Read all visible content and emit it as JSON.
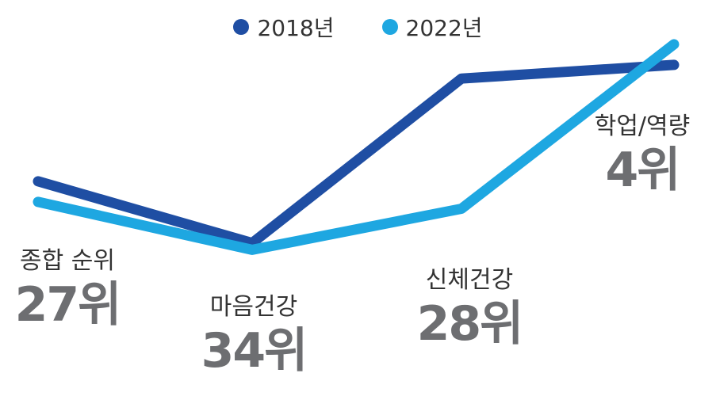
{
  "chart_data": {
    "type": "line",
    "categories": [
      "종합 순위",
      "마음건강",
      "신체건강",
      "학업/역량"
    ],
    "ranks": [
      "27위",
      "34위",
      "28위",
      "4위"
    ],
    "series": [
      {
        "name": "2018년",
        "color": "#1f4ea3",
        "values": [
          24,
          33,
          9,
          7
        ]
      },
      {
        "name": "2022년",
        "color": "#1ea7e1",
        "values": [
          27,
          34,
          28,
          4
        ]
      }
    ],
    "ylim": [
      1,
      38
    ],
    "y_inverted": true,
    "legend_position": "top-center",
    "grid": false
  }
}
